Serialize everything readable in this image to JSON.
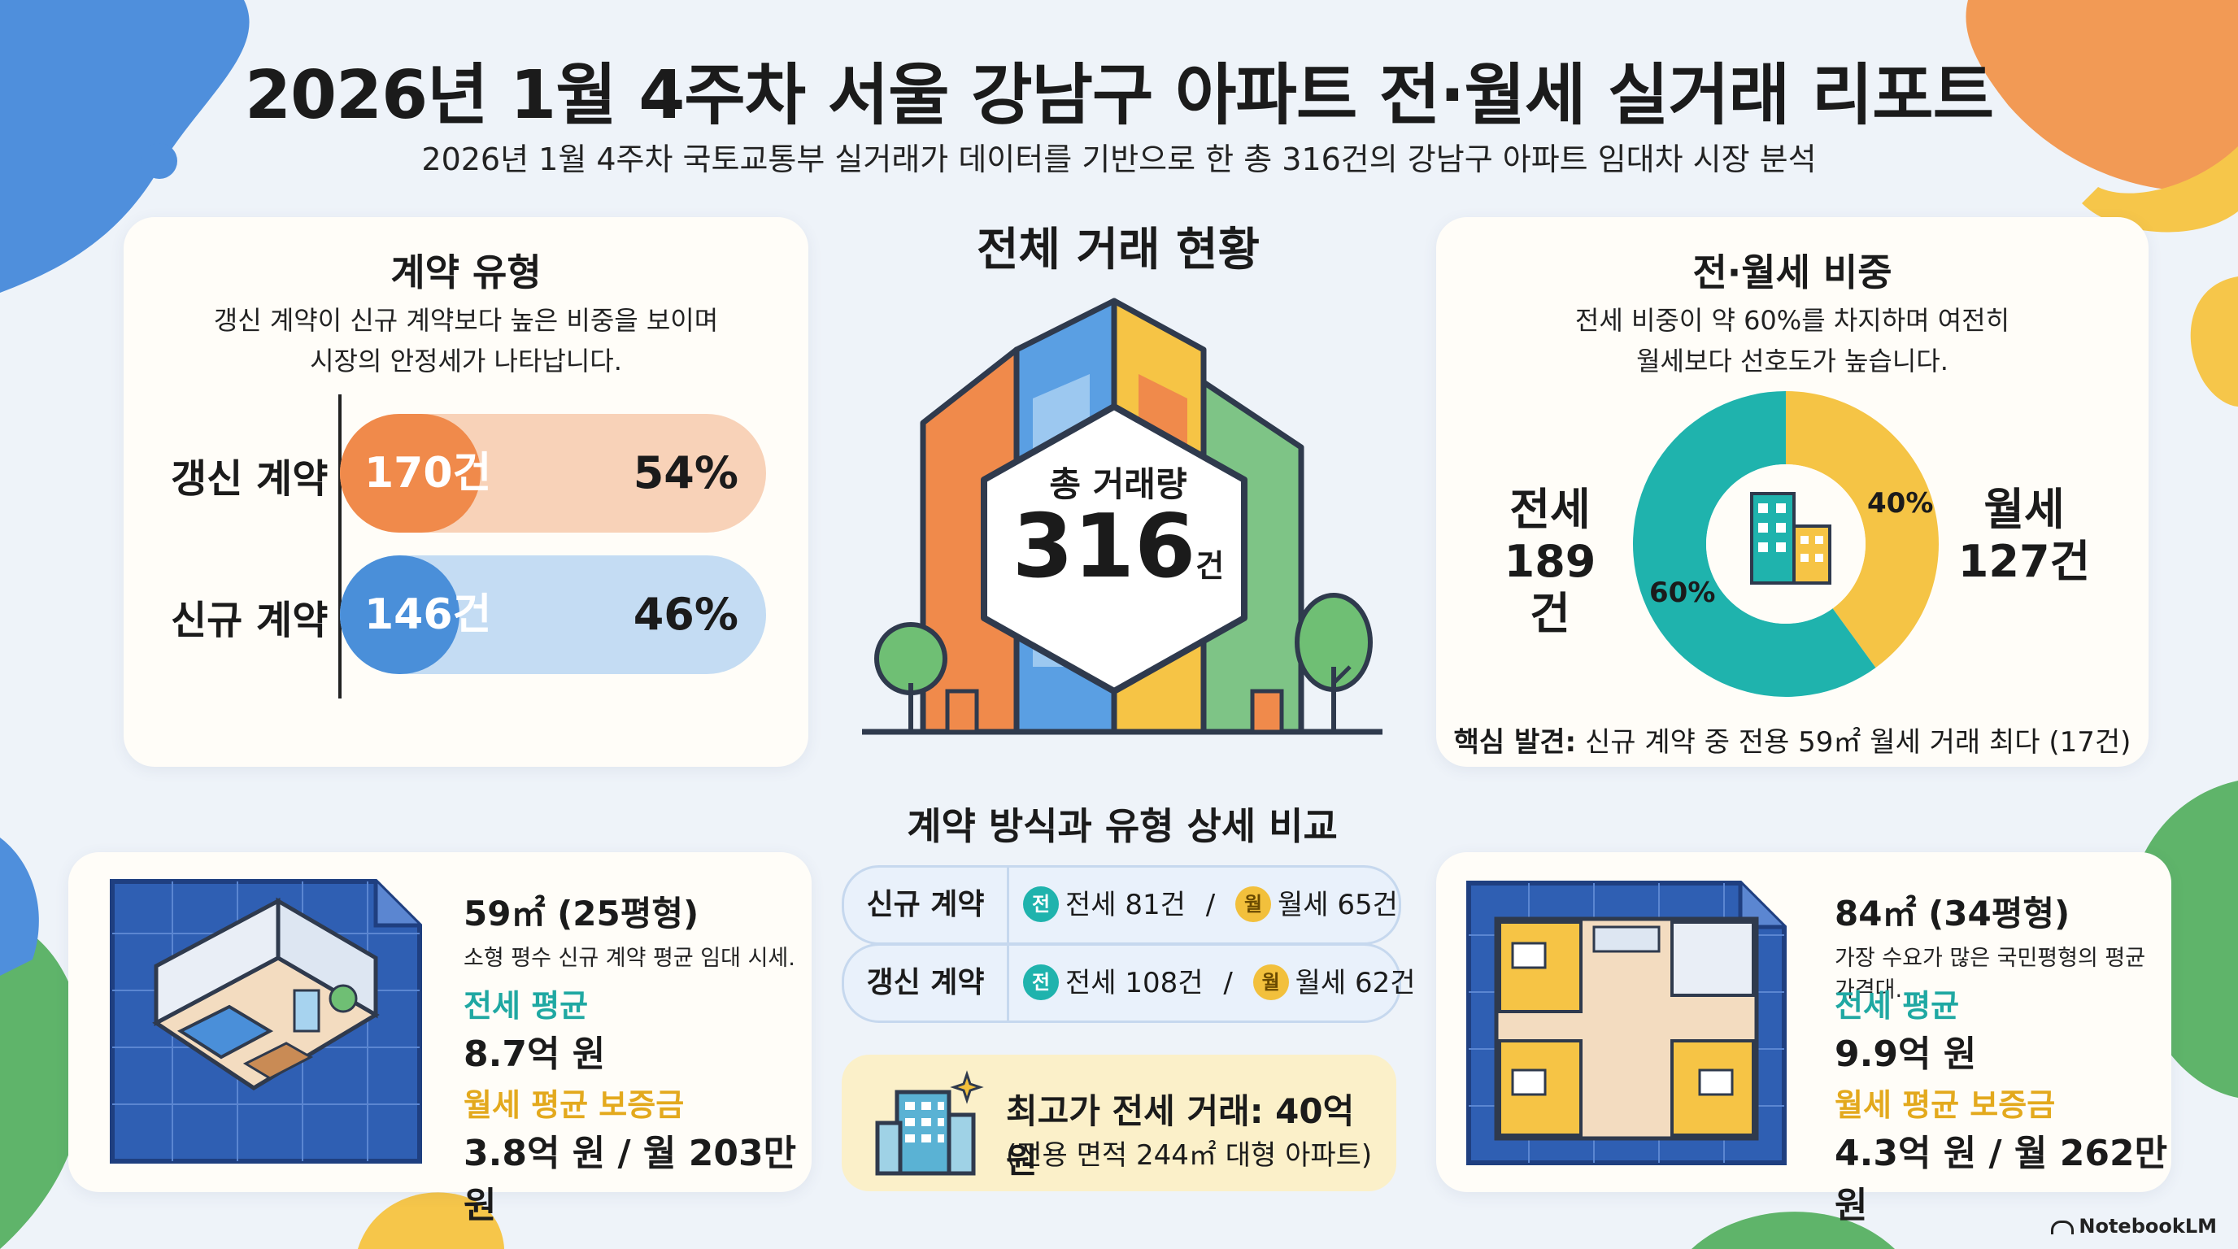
{
  "title": "2026년 1월 4주차 서울 강남구 아파트 전·월세 실거래 리포트",
  "subtitle": "2026년 1월 4주차 국토교통부 실거래가 데이터를 기반으로 한 총 316건의 강남구 아파트 임대차 시장 분석",
  "contract_type": {
    "title": "계약 유형",
    "desc_line1": "갱신 계약이 신규 계약보다 높은 비중을 보이며",
    "desc_line2": "시장의 안정세가 나타납니다.",
    "rows": [
      {
        "label": "갱신 계약",
        "count": "170건",
        "pct": "54%",
        "share": 0.54,
        "fill": "#f08a4b",
        "track": "#f8d2b8"
      },
      {
        "label": "신규 계약",
        "count": "146건",
        "pct": "46%",
        "share": 0.46,
        "fill": "#4a8fd9",
        "track": "#c4dcf3"
      }
    ]
  },
  "overview": {
    "title": "전체 거래 현황",
    "total_label": "총 거래량",
    "total_value": "316",
    "total_unit": "건"
  },
  "ratio": {
    "title": "전·월세 비중",
    "desc_line1": "전세 비중이 약 60%를 차지하며 여전히",
    "desc_line2": "월세보다 선호도가 높습니다.",
    "jeonse_label": "전세",
    "jeonse_count": "189건",
    "wolse_label": "월세",
    "wolse_count": "127건",
    "jeonse_pct": "60%",
    "wolse_pct": "40%",
    "jeonse_share": 0.6,
    "key_label": "핵심 발견:",
    "key_text": "신규 계약 중 전용 59㎡ 월세 거래 최다 (17건)",
    "colors": {
      "jeonse": "#1fb3ad",
      "wolse": "#f5c445"
    }
  },
  "small_unit": {
    "title": "59㎡ (25평형)",
    "desc": "소형 평수 신규 계약 평균 임대 시세.",
    "jeonse_label": "전세 평균",
    "jeonse_value": "8.7억 원",
    "wolse_label": "월세 평균 보증금",
    "wolse_value": "3.8억 원 / 월 203만 원"
  },
  "detail": {
    "title": "계약 방식과 유형 상세 비교",
    "rows": [
      {
        "label": "신규 계약",
        "jeonse_badge": "전",
        "jeonse": "전세 81건",
        "sep": "/",
        "wolse_badge": "월",
        "wolse": "월세 65건"
      },
      {
        "label": "갱신 계약",
        "jeonse_badge": "전",
        "jeonse": "전세 108건",
        "sep": "/",
        "wolse_badge": "월",
        "wolse": "월세 62건"
      }
    ]
  },
  "top_deal": {
    "title": "최고가 전세 거래: 40억 원",
    "sub": "(전용 면적 244㎡ 대형 아파트)"
  },
  "large_unit": {
    "title": "84㎡ (34평형)",
    "desc": "가장 수요가 많은 국민평형의 평균 가격대.",
    "jeonse_label": "전세 평균",
    "jeonse_value": "9.9억 원",
    "wolse_label": "월세 평균 보증금",
    "wolse_value": "4.3억 원 / 월 262만 원"
  },
  "brand": "NotebookLM",
  "icons": [
    "bar-divider-line",
    "building-icon",
    "tree-icon",
    "room-isometric-icon",
    "floor-plan-icon",
    "sparkle-icon",
    "notebooklm-logo-icon"
  ],
  "colors": {
    "accent_teal": "#1fb3ad",
    "accent_yellow": "#f2c03c",
    "accent_orange": "#f08a4b",
    "accent_blue": "#4a8fd9"
  }
}
